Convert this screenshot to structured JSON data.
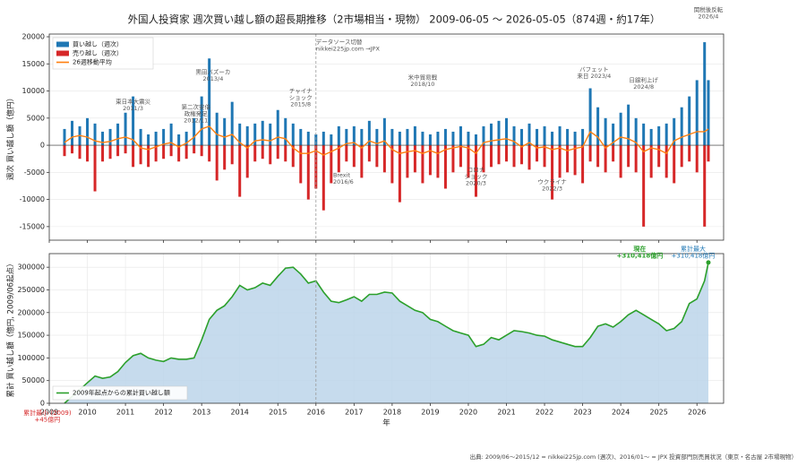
{
  "chart_data": [
    {
      "type": "bar",
      "title": "外国人投資家 週次買い越し額の超長期推移（2市場相当・現物） 2009-06-05 〜 2026-05-05（874週・約17年）",
      "ylabel": "週次 買い越し額（億円）",
      "xlim": [
        2009,
        2026.7
      ],
      "ylim": [
        -17500,
        20500
      ],
      "yticks": [
        -15000,
        -10000,
        -5000,
        0,
        5000,
        10000,
        15000,
        20000
      ],
      "grid": true,
      "legend": "upper left",
      "divider": 2016,
      "x": [
        2009.4,
        2009.6,
        2009.8,
        2010.0,
        2010.2,
        2010.4,
        2010.6,
        2010.8,
        2011.0,
        2011.2,
        2011.4,
        2011.6,
        2011.8,
        2012.0,
        2012.2,
        2012.4,
        2012.6,
        2012.8,
        2013.0,
        2013.2,
        2013.4,
        2013.6,
        2013.8,
        2014.0,
        2014.2,
        2014.4,
        2014.6,
        2014.8,
        2015.0,
        2015.2,
        2015.4,
        2015.6,
        2015.8,
        2016.0,
        2016.2,
        2016.4,
        2016.6,
        2016.8,
        2017.0,
        2017.2,
        2017.4,
        2017.6,
        2017.8,
        2018.0,
        2018.2,
        2018.4,
        2018.6,
        2018.8,
        2019.0,
        2019.2,
        2019.4,
        2019.6,
        2019.8,
        2020.0,
        2020.2,
        2020.4,
        2020.6,
        2020.8,
        2021.0,
        2021.2,
        2021.4,
        2021.6,
        2021.8,
        2022.0,
        2022.2,
        2022.4,
        2022.6,
        2022.8,
        2023.0,
        2023.2,
        2023.4,
        2023.6,
        2023.8,
        2024.0,
        2024.2,
        2024.4,
        2024.6,
        2024.8,
        2025.0,
        2025.2,
        2025.4,
        2025.6,
        2025.8,
        2026.0,
        2026.2,
        2026.3
      ],
      "series": [
        {
          "name": "買い越し（週次）",
          "color": "#1f77b4",
          "values": [
            3000,
            4500,
            3500,
            5000,
            4000,
            2500,
            3000,
            4000,
            6000,
            9000,
            3000,
            2000,
            2500,
            3000,
            4000,
            2000,
            2500,
            5000,
            9000,
            16000,
            6000,
            5000,
            8000,
            4000,
            3500,
            4000,
            4500,
            4000,
            6500,
            5000,
            4000,
            3000,
            2500,
            2000,
            2500,
            2000,
            3500,
            3000,
            3500,
            3000,
            4500,
            3000,
            5000,
            3000,
            2500,
            3000,
            3500,
            2500,
            2000,
            2500,
            3000,
            2500,
            3500,
            2500,
            2000,
            3500,
            4000,
            4500,
            5000,
            3500,
            3000,
            4000,
            3000,
            3500,
            2500,
            3500,
            3000,
            2500,
            3000,
            10500,
            7000,
            5000,
            4000,
            6000,
            7500,
            5000,
            4000,
            3000,
            3500,
            4000,
            5000,
            7000,
            9000,
            12000,
            19000,
            12000
          ]
        },
        {
          "name": "売り越し（週次）",
          "color": "#d62728",
          "values": [
            -2000,
            -1500,
            -2500,
            -3000,
            -8500,
            -3000,
            -2500,
            -2000,
            -1500,
            -4000,
            -3500,
            -4000,
            -3000,
            -2500,
            -2000,
            -3000,
            -2500,
            -1500,
            -2000,
            -3000,
            -6500,
            -4500,
            -3500,
            -9500,
            -6000,
            -3000,
            -2500,
            -3500,
            -2500,
            -3000,
            -4000,
            -7000,
            -10000,
            -8000,
            -12000,
            -7000,
            -5000,
            -3000,
            -4000,
            -6000,
            -3000,
            -4000,
            -5000,
            -7000,
            -10500,
            -6000,
            -5000,
            -7000,
            -5500,
            -6000,
            -8000,
            -5000,
            -4000,
            -6000,
            -9500,
            -5000,
            -4000,
            -3500,
            -3000,
            -4000,
            -3500,
            -4500,
            -3000,
            -4000,
            -10000,
            -6000,
            -5000,
            -5500,
            -7000,
            -3000,
            -4000,
            -5000,
            -3000,
            -6000,
            -4000,
            -5000,
            -15000,
            -6000,
            -4000,
            -6000,
            -7000,
            -4000,
            -3000,
            -5000,
            -15000,
            -3000
          ]
        },
        {
          "name": "26週移動平均",
          "color": "#ff7f0e",
          "type": "line",
          "values": [
            500,
            1500,
            1800,
            1500,
            800,
            500,
            700,
            1200,
            1500,
            1000,
            -500,
            -800,
            -300,
            200,
            500,
            -300,
            400,
            1500,
            3000,
            3500,
            2000,
            1500,
            2000,
            500,
            -500,
            800,
            1000,
            800,
            1500,
            1200,
            -500,
            -1500,
            -1500,
            -1000,
            -1800,
            -1200,
            -500,
            300,
            500,
            -500,
            800,
            300,
            800,
            -800,
            -1500,
            -1200,
            -1000,
            -1500,
            -1000,
            -1500,
            -800,
            -500,
            -200,
            -500,
            -1500,
            500,
            800,
            1000,
            1200,
            700,
            -300,
            500,
            -500,
            -300,
            -800,
            -500,
            -1000,
            -600,
            -300,
            2500,
            1500,
            -500,
            500,
            1500,
            1200,
            500,
            -1200,
            -500,
            -800,
            -1500,
            800,
            1500,
            2000,
            2500,
            2500,
            3000
          ]
        }
      ],
      "annotations": [
        {
          "lines": [
            "東日本大震災",
            "2011/3"
          ],
          "x": 2011.2,
          "y": 8000
        },
        {
          "lines": [
            "第二次安倍",
            "政権発足",
            "2012/11"
          ],
          "x": 2012.85,
          "y": 7000
        },
        {
          "lines": [
            "黒田バズーカ",
            "2013/4"
          ],
          "x": 2013.3,
          "y": 13500
        },
        {
          "lines": [
            "チャイナ",
            "ショック",
            "2015/8"
          ],
          "x": 2015.6,
          "y": 10000
        },
        {
          "lines": [
            "データソース切替",
            "nikkei225jp.com →JPX"
          ],
          "x": 2016.0,
          "y": 19000,
          "anchor": "start"
        },
        {
          "lines": [
            "Brexit",
            "2016/6"
          ],
          "x": 2016.45,
          "y": -5500,
          "anchor": "start"
        },
        {
          "lines": [
            "米中貿易戦",
            "2018/10"
          ],
          "x": 2018.8,
          "y": 12500
        },
        {
          "lines": [
            "コロナ",
            "ショック",
            "2020/3"
          ],
          "x": 2020.2,
          "y": -4500
        },
        {
          "lines": [
            "ウクライナ",
            "2022/3"
          ],
          "x": 2022.2,
          "y": -6800
        },
        {
          "lines": [
            "バフェット",
            "来日 2023/4"
          ],
          "x": 2023.3,
          "y": 14000
        },
        {
          "lines": [
            "日銀利上げ",
            "2024/8"
          ],
          "x": 2024.6,
          "y": 12000
        },
        {
          "lines": [
            "関税後反転",
            "2026/4"
          ],
          "x": 2026.3,
          "y": 25000
        }
      ]
    },
    {
      "type": "area",
      "ylabel": "累計 買い越し額（億円, 2009/06起点）",
      "xlabel": "年",
      "xlim": [
        2009,
        2026.7
      ],
      "ylim": [
        0,
        330000
      ],
      "yticks": [
        0,
        50000,
        100000,
        150000,
        200000,
        250000,
        300000
      ],
      "xticks": [
        2009,
        2010,
        2011,
        2012,
        2013,
        2014,
        2015,
        2016,
        2017,
        2018,
        2019,
        2020,
        2021,
        2022,
        2023,
        2024,
        2025,
        2026
      ],
      "grid": true,
      "legend": "lower left",
      "divider": 2016,
      "x": [
        2009.4,
        2009.6,
        2009.8,
        2010.0,
        2010.2,
        2010.4,
        2010.6,
        2010.8,
        2011.0,
        2011.2,
        2011.4,
        2011.6,
        2011.8,
        2012.0,
        2012.2,
        2012.4,
        2012.6,
        2012.8,
        2013.0,
        2013.2,
        2013.4,
        2013.6,
        2013.8,
        2014.0,
        2014.2,
        2014.4,
        2014.6,
        2014.8,
        2015.0,
        2015.2,
        2015.4,
        2015.6,
        2015.8,
        2016.0,
        2016.2,
        2016.4,
        2016.6,
        2016.8,
        2017.0,
        2017.2,
        2017.4,
        2017.6,
        2017.8,
        2018.0,
        2018.2,
        2018.4,
        2018.6,
        2018.8,
        2019.0,
        2019.2,
        2019.4,
        2019.6,
        2019.8,
        2020.0,
        2020.2,
        2020.4,
        2020.6,
        2020.8,
        2021.0,
        2021.2,
        2021.4,
        2021.6,
        2021.8,
        2022.0,
        2022.2,
        2022.4,
        2022.6,
        2022.8,
        2023.0,
        2023.2,
        2023.4,
        2023.6,
        2023.8,
        2024.0,
        2024.2,
        2024.4,
        2024.6,
        2024.8,
        2025.0,
        2025.2,
        2025.4,
        2025.6,
        2025.8,
        2026.0,
        2026.2,
        2026.3
      ],
      "series": [
        {
          "name": "2009年起点からの累計買い越し額",
          "color": "#2ca02c",
          "fill": "#bcd5ea",
          "values": [
            45,
            15000,
            30000,
            45000,
            60000,
            55000,
            58000,
            70000,
            90000,
            105000,
            110000,
            100000,
            95000,
            92000,
            100000,
            97000,
            97000,
            100000,
            140000,
            185000,
            205000,
            215000,
            235000,
            260000,
            250000,
            255000,
            265000,
            260000,
            280000,
            298000,
            300000,
            285000,
            265000,
            270000,
            245000,
            225000,
            222000,
            228000,
            235000,
            225000,
            240000,
            240000,
            245000,
            243000,
            225000,
            215000,
            205000,
            200000,
            185000,
            180000,
            170000,
            160000,
            155000,
            150000,
            125000,
            130000,
            145000,
            140000,
            150000,
            160000,
            158000,
            155000,
            150000,
            148000,
            140000,
            135000,
            130000,
            125000,
            125000,
            145000,
            170000,
            175000,
            168000,
            180000,
            195000,
            205000,
            195000,
            185000,
            175000,
            160000,
            165000,
            180000,
            220000,
            230000,
            270000,
            310418
          ]
        }
      ],
      "annotations": [
        {
          "lines": [
            "現在",
            "+310,418億円"
          ],
          "x": 2024.5,
          "y": 340000,
          "color": "#2ca02c",
          "bold": true
        },
        {
          "lines": [
            "累計最大",
            "+310,418億円"
          ],
          "x": 2025.9,
          "y": 340000,
          "color": "#1f77b4"
        },
        {
          "lines": [
            "累計最小 (2009)",
            "+45億円"
          ],
          "x": 2008.95,
          "y": -22000,
          "color": "#d62728"
        }
      ]
    }
  ],
  "footer": "出典: 2009/06〜2015/12 = nikkei225jp.com (週次)、2016/01〜 = JPX 投資部門別売買状況（東京・名古屋 2市場現物）"
}
